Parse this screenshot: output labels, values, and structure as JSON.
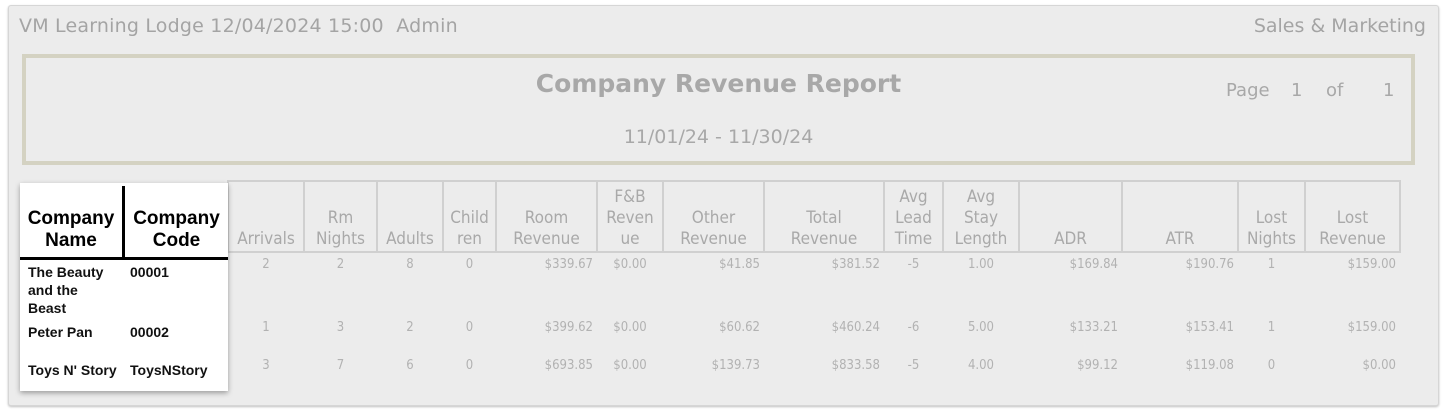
{
  "header": {
    "left_text": "VM Learning Lodge 12/04/2024 15:00  Admin",
    "right_text": "Sales & Marketing"
  },
  "report": {
    "title": "Company Revenue Report",
    "date_range": "11/01/24 - 11/30/24",
    "page_label": "Page",
    "page_current": "1",
    "of_label": "of",
    "page_total": "1"
  },
  "frozen_columns": {
    "company_name_header_1": "Company",
    "company_name_header_2": "Name",
    "company_code_header_1": "Company",
    "company_code_header_2": "Code"
  },
  "columns": {
    "arrivals": [
      "Arrivals"
    ],
    "rm_nights": [
      "Rm",
      "Nights"
    ],
    "adults": [
      "Adults"
    ],
    "children": [
      "Child",
      "ren"
    ],
    "room_revenue": [
      "Room",
      "Revenue"
    ],
    "fb_revenue": [
      "F&B",
      "Reven",
      "ue"
    ],
    "other_revenue": [
      "Other",
      "Revenue"
    ],
    "total_revenue": [
      "Total",
      "Revenue"
    ],
    "avg_lead_time": [
      "Avg",
      "Lead",
      "Time"
    ],
    "avg_stay_length": [
      "Avg",
      "Stay",
      "Length"
    ],
    "adr": [
      "ADR"
    ],
    "atr": [
      "ATR"
    ],
    "lost_nights": [
      "Lost",
      "Nights"
    ],
    "lost_revenue": [
      "Lost",
      "Revenue"
    ]
  },
  "rows": [
    {
      "name_lines": [
        "The Beauty",
        "and the",
        "Beast"
      ],
      "code": "00001",
      "arrivals": "2",
      "rm_nights": "2",
      "adults": "8",
      "children": "0",
      "room_revenue": "$339.67",
      "fb_revenue": "$0.00",
      "other_revenue": "$41.85",
      "total_revenue": "$381.52",
      "avg_lead_time": "-5",
      "avg_stay_length": "1.00",
      "adr": "$169.84",
      "atr": "$190.76",
      "lost_nights": "1",
      "lost_revenue": "$159.00"
    },
    {
      "name_lines": [
        "Peter Pan"
      ],
      "code": "00002",
      "arrivals": "1",
      "rm_nights": "3",
      "adults": "2",
      "children": "0",
      "room_revenue": "$399.62",
      "fb_revenue": "$0.00",
      "other_revenue": "$60.62",
      "total_revenue": "$460.24",
      "avg_lead_time": "-6",
      "avg_stay_length": "5.00",
      "adr": "$133.21",
      "atr": "$153.41",
      "lost_nights": "1",
      "lost_revenue": "$159.00"
    },
    {
      "name_lines": [
        "Toys N' Story"
      ],
      "code": "ToysNStory",
      "arrivals": "3",
      "rm_nights": "7",
      "adults": "6",
      "children": "0",
      "room_revenue": "$693.85",
      "fb_revenue": "$0.00",
      "other_revenue": "$139.73",
      "total_revenue": "$833.58",
      "avg_lead_time": "-5",
      "avg_stay_length": "4.00",
      "adr": "$99.12",
      "atr": "$119.08",
      "lost_nights": "0",
      "lost_revenue": "$0.00"
    }
  ]
}
